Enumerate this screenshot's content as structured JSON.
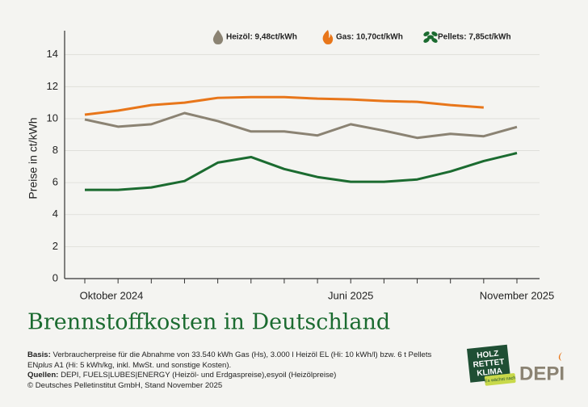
{
  "chart_data": {
    "type": "line",
    "title": "Brennstoffkosten in Deutschland",
    "y_label": "Preise in ct/kWh",
    "categories": [
      "Oktober 2024",
      null,
      null,
      null,
      null,
      null,
      null,
      null,
      "Juni 2025",
      null,
      null,
      null,
      null,
      "November 2025"
    ],
    "series": [
      {
        "name": "Heizöl: 9,48ct/kWh",
        "color": "#8b8373",
        "values": [
          9.95,
          9.5,
          9.65,
          10.35,
          9.85,
          9.2,
          9.2,
          8.95,
          9.65,
          9.25,
          8.8,
          9.05,
          8.9,
          9.48
        ]
      },
      {
        "name": "Gas: 10,70ct/kWh",
        "color": "#e8761a",
        "values": [
          10.25,
          10.5,
          10.85,
          11.0,
          11.3,
          11.35,
          11.35,
          11.25,
          11.2,
          11.1,
          11.05,
          10.85,
          10.7,
          null
        ]
      },
      {
        "name": "Pellets: 7,85ct/kWh",
        "color": "#1b6b30",
        "values": [
          5.55,
          5.55,
          5.7,
          6.1,
          7.25,
          7.6,
          6.85,
          6.35,
          6.05,
          6.05,
          6.2,
          6.7,
          7.35,
          7.85
        ]
      }
    ],
    "ylim": [
      0,
      15.5
    ],
    "yticks": [
      0,
      2,
      4,
      6,
      8,
      10,
      12,
      14
    ],
    "grid": true,
    "legend": "top-right"
  },
  "footer": {
    "basis_label": "Basis:",
    "basis_text": "Verbraucherpreise für die Abnahme von 33.540 kWh Gas (Hs), 3.000 l Heizöl EL (Hi: 10 kWh/l) bzw. 6 t Pellets",
    "en": "EN",
    "plus": "plus",
    "basis_text_2": "A1 (Hi: 5 kWh/kg, inkl. MwSt. und sonstige Kosten).",
    "sources_label": "Quellen:",
    "sources_text": "DEPI, FUELS|LUBES|ENERGY (Heizöl- und Erdgaspreise),esyoil (Heizölpreise)",
    "copyright": "© Deutsches Pelletinstitut GmbH, Stand November 2025"
  },
  "logos": {
    "holz": "HOLZ",
    "rettet": "RETTET",
    "klima": "KLIMA",
    "badge": "Es wächst nach",
    "depi": "DEPI"
  }
}
